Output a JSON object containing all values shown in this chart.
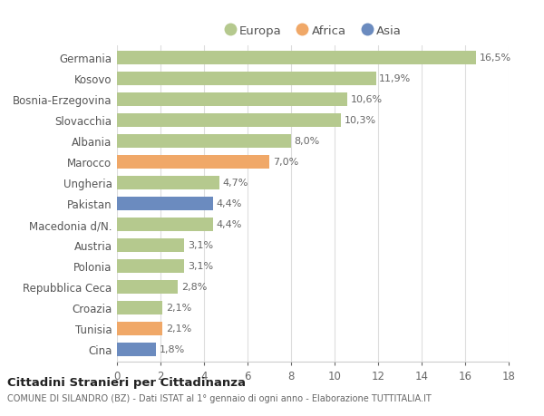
{
  "countries": [
    "Germania",
    "Kosovo",
    "Bosnia-Erzegovina",
    "Slovacchia",
    "Albania",
    "Marocco",
    "Ungheria",
    "Pakistan",
    "Macedonia d/N.",
    "Austria",
    "Polonia",
    "Repubblica Ceca",
    "Croazia",
    "Tunisia",
    "Cina"
  ],
  "values": [
    16.5,
    11.9,
    10.6,
    10.3,
    8.0,
    7.0,
    4.7,
    4.4,
    4.4,
    3.1,
    3.1,
    2.8,
    2.1,
    2.1,
    1.8
  ],
  "labels": [
    "16,5%",
    "11,9%",
    "10,6%",
    "10,3%",
    "8,0%",
    "7,0%",
    "4,7%",
    "4,4%",
    "4,4%",
    "3,1%",
    "3,1%",
    "2,8%",
    "2,1%",
    "2,1%",
    "1,8%"
  ],
  "continents": [
    "Europa",
    "Europa",
    "Europa",
    "Europa",
    "Europa",
    "Africa",
    "Europa",
    "Asia",
    "Europa",
    "Europa",
    "Europa",
    "Europa",
    "Europa",
    "Africa",
    "Asia"
  ],
  "colors": {
    "Europa": "#b5c98e",
    "Africa": "#f0a868",
    "Asia": "#6b8bbf"
  },
  "background_color": "#ffffff",
  "title": "Cittadini Stranieri per Cittadinanza",
  "subtitle": "COMUNE DI SILANDRO (BZ) - Dati ISTAT al 1° gennaio di ogni anno - Elaborazione TUTTITALIA.IT",
  "xlim": [
    0,
    18
  ],
  "xticks": [
    0,
    2,
    4,
    6,
    8,
    10,
    12,
    14,
    16,
    18
  ]
}
